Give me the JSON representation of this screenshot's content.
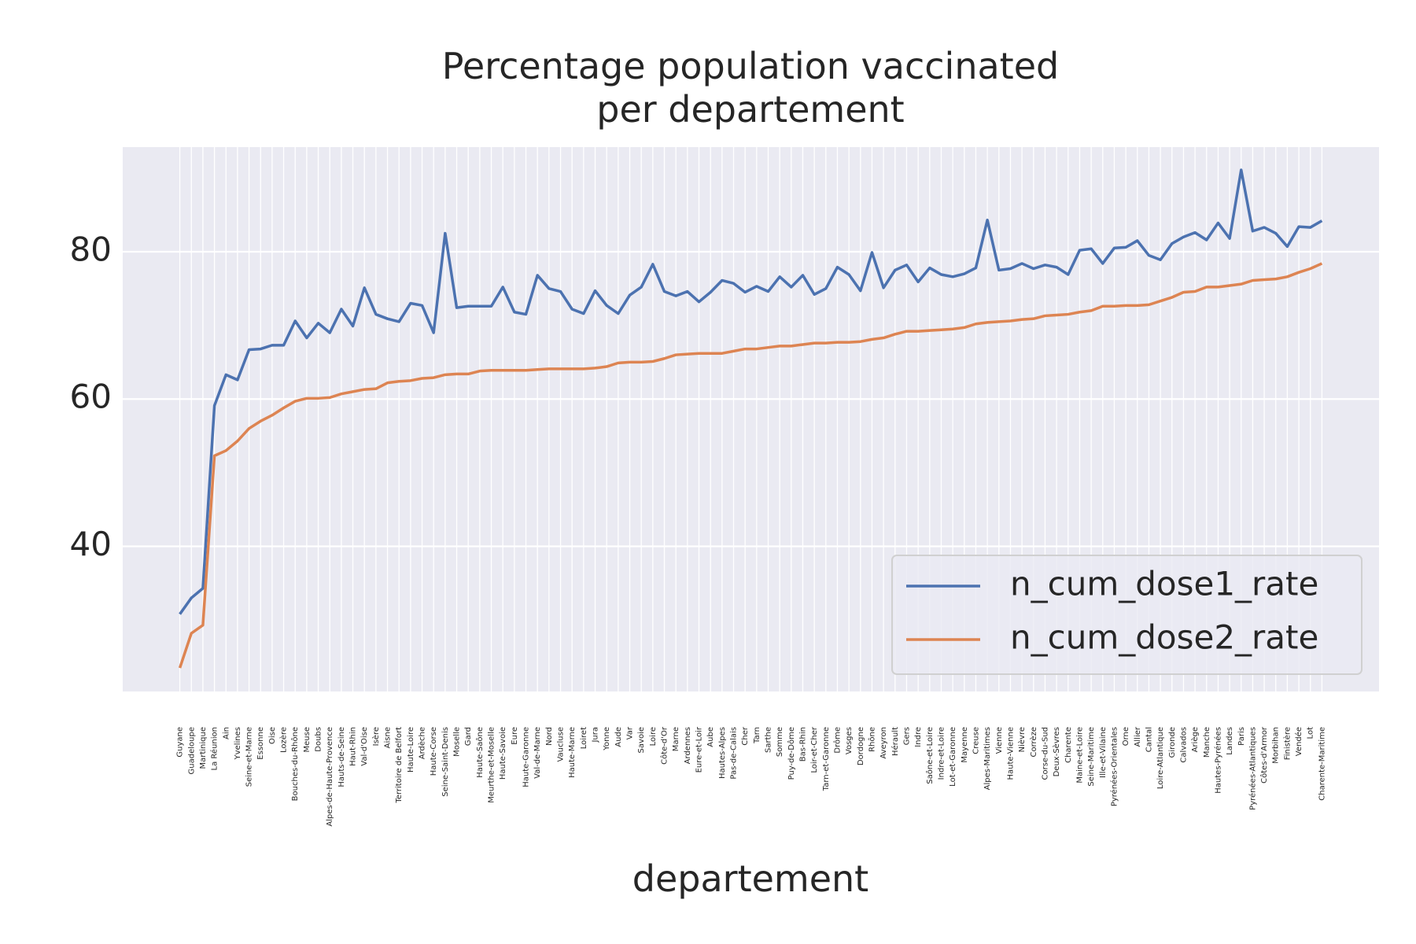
{
  "chart_data": {
    "type": "line",
    "title": [
      "Percentage population vaccinated",
      "per departement"
    ],
    "x_label": "departement",
    "categories": [
      "Guyane",
      "Guadeloupe",
      "Martinique",
      "La Réunion",
      "Ain",
      "Yvelines",
      "Seine-et-Marne",
      "Essonne",
      "Oise",
      "Lozère",
      "Bouches-du-Rhône",
      "Meuse",
      "Doubs",
      "Alpes-de-Haute-Provence",
      "Hauts-de-Seine",
      "Haut-Rhin",
      "Val-d'Oise",
      "Isère",
      "Aisne",
      "Territoire de Belfort",
      "Haute-Loire",
      "Ardèche",
      "Haute-Corse",
      "Seine-Saint-Denis",
      "Moselle",
      "Gard",
      "Haute-Saône",
      "Meurthe-et-Moselle",
      "Haute-Savoie",
      "Eure",
      "Haute-Garonne",
      "Val-de-Marne",
      "Nord",
      "Vaucluse",
      "Haute-Marne",
      "Loiret",
      "Jura",
      "Yonne",
      "Aude",
      "Var",
      "Savoie",
      "Loire",
      "Côte-d'Or",
      "Marne",
      "Ardennes",
      "Eure-et-Loir",
      "Aube",
      "Hautes-Alpes",
      "Pas-de-Calais",
      "Cher",
      "Tarn",
      "Sarthe",
      "Somme",
      "Puy-de-Dôme",
      "Bas-Rhin",
      "Loir-et-Cher",
      "Tarn-et-Garonne",
      "Drôme",
      "Vosges",
      "Dordogne",
      "Rhône",
      "Aveyron",
      "Hérault",
      "Gers",
      "Indre",
      "Saône-et-Loire",
      "Indre-et-Loire",
      "Lot-et-Garonne",
      "Mayenne",
      "Creuse",
      "Alpes-Maritimes",
      "Vienne",
      "Haute-Vienne",
      "Nièvre",
      "Corrèze",
      "Corse-du-Sud",
      "Deux-Sèvres",
      "Charente",
      "Maine-et-Loire",
      "Seine-Maritime",
      "Ille-et-Vilaine",
      "Pyrénées-Orientales",
      "Orne",
      "Allier",
      "Cantal",
      "Loire-Atlantique",
      "Gironde",
      "Calvados",
      "Ariège",
      "Manche",
      "Hautes-Pyrénées",
      "Landes",
      "Paris",
      "Pyrénées-Atlantiques",
      "Côtes-d'Armor",
      "Morbihan",
      "Finistère",
      "Vendée",
      "Lot",
      "Charente-Maritime"
    ],
    "series": [
      {
        "name": "n_cum_dose1_rate",
        "color": "#4c72b0",
        "values": [
          30.8,
          33.0,
          34.3,
          59.1,
          63.3,
          62.6,
          66.7,
          66.8,
          67.3,
          67.3,
          70.6,
          68.3,
          70.3,
          69.0,
          72.2,
          69.9,
          75.1,
          71.5,
          70.9,
          70.5,
          73.0,
          72.7,
          69.0,
          82.5,
          72.4,
          72.6,
          72.6,
          72.6,
          75.2,
          71.8,
          71.5,
          76.8,
          75.0,
          74.6,
          72.2,
          71.6,
          74.7,
          72.7,
          71.6,
          74.1,
          75.2,
          78.3,
          74.6,
          74.0,
          74.6,
          73.2,
          74.5,
          76.1,
          75.7,
          74.5,
          75.3,
          74.6,
          76.6,
          75.2,
          76.8,
          74.2,
          75.0,
          77.9,
          76.9,
          74.7,
          79.9,
          75.1,
          77.5,
          78.2,
          75.9,
          77.8,
          76.9,
          76.6,
          77.0,
          77.8,
          84.3,
          77.5,
          77.7,
          78.4,
          77.7,
          78.2,
          77.9,
          76.9,
          80.2,
          80.4,
          78.4,
          80.5,
          80.6,
          81.5,
          79.5,
          78.9,
          81.1,
          82.0,
          82.6,
          81.6,
          83.9,
          81.8,
          91.1,
          82.8,
          83.3,
          82.5,
          80.7,
          83.4,
          83.3,
          84.2
        ]
      },
      {
        "name": "n_cum_dose2_rate",
        "color": "#dd8452",
        "values": [
          23.5,
          28.2,
          29.3,
          52.3,
          53.0,
          54.3,
          56.0,
          57.0,
          57.8,
          58.8,
          59.7,
          60.1,
          60.1,
          60.2,
          60.7,
          61.0,
          61.3,
          61.4,
          62.2,
          62.4,
          62.5,
          62.8,
          62.9,
          63.3,
          63.4,
          63.4,
          63.8,
          63.9,
          63.9,
          63.9,
          63.9,
          64.0,
          64.1,
          64.1,
          64.1,
          64.1,
          64.2,
          64.4,
          64.9,
          65.0,
          65.0,
          65.1,
          65.5,
          66.0,
          66.1,
          66.2,
          66.2,
          66.2,
          66.5,
          66.8,
          66.8,
          67.0,
          67.2,
          67.2,
          67.4,
          67.6,
          67.6,
          67.7,
          67.7,
          67.8,
          68.1,
          68.3,
          68.8,
          69.2,
          69.2,
          69.3,
          69.4,
          69.5,
          69.7,
          70.2,
          70.4,
          70.5,
          70.6,
          70.8,
          70.9,
          71.3,
          71.4,
          71.5,
          71.8,
          72.0,
          72.6,
          72.6,
          72.7,
          72.7,
          72.8,
          73.3,
          73.8,
          74.5,
          74.6,
          75.2,
          75.2,
          75.4,
          75.6,
          76.1,
          76.2,
          76.3,
          76.6,
          77.2,
          77.7,
          78.4
        ]
      }
    ],
    "ylim": [
      20.3,
      94.2
    ],
    "yticks": [
      40,
      60,
      80
    ],
    "grid": true,
    "legend": "lower right"
  }
}
